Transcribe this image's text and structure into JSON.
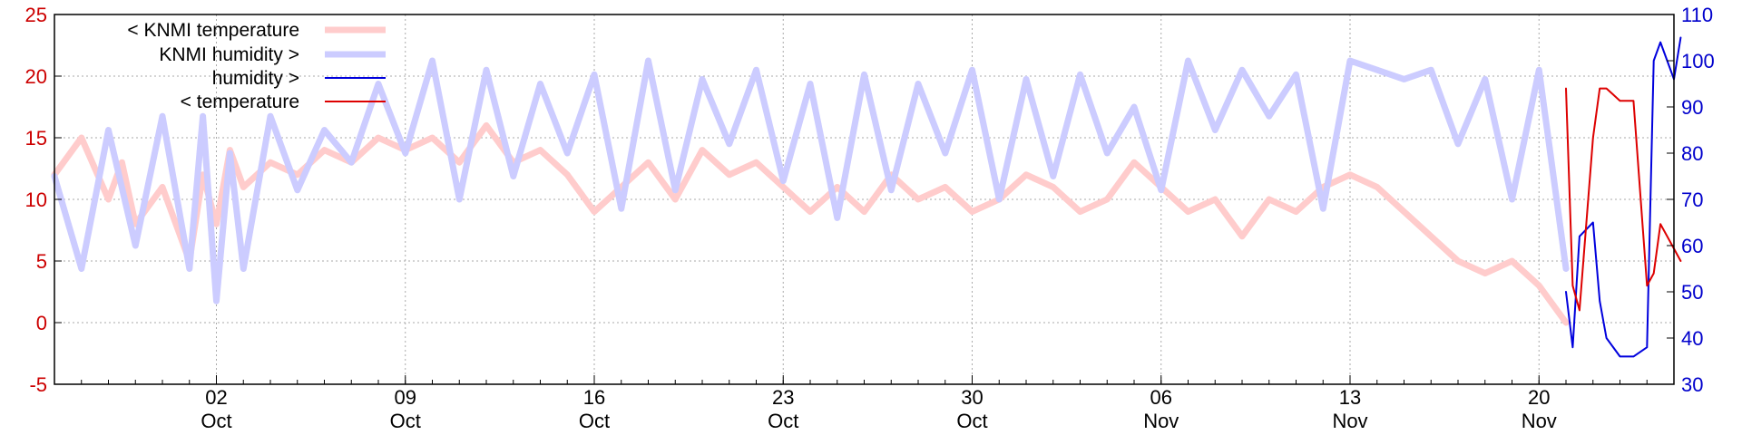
{
  "chart_data": {
    "type": "line",
    "title": "",
    "xlabel": "",
    "ylabel_left": "",
    "ylabel_right": "",
    "grid": true,
    "legend_position": "top-left",
    "x_start": "2023-09-26",
    "x_end": "2023-11-25",
    "xlim": [
      "2023-09-26",
      "2023-11-25"
    ],
    "ylim_left": [
      -5,
      25
    ],
    "ylim_right": [
      30,
      110
    ],
    "y_left_ticks": [
      "-5",
      "0",
      "5",
      "10",
      "15",
      "20",
      "25"
    ],
    "y_right_ticks": [
      "30",
      "40",
      "50",
      "60",
      "70",
      "80",
      "90",
      "100",
      "110"
    ],
    "x_ticks": [
      {
        "date": "2023-10-02",
        "day": "02",
        "month": "Oct"
      },
      {
        "date": "2023-10-09",
        "day": "09",
        "month": "Oct"
      },
      {
        "date": "2023-10-16",
        "day": "16",
        "month": "Oct"
      },
      {
        "date": "2023-10-23",
        "day": "23",
        "month": "Oct"
      },
      {
        "date": "2023-10-30",
        "day": "30",
        "month": "Oct"
      },
      {
        "date": "2023-11-06",
        "day": "06",
        "month": "Nov"
      },
      {
        "date": "2023-11-13",
        "day": "13",
        "month": "Nov"
      },
      {
        "date": "2023-11-20",
        "day": "20",
        "month": "Nov"
      }
    ],
    "colors": {
      "left_axis": "#cc0000",
      "right_axis": "#0000cc",
      "grid": "#aaaaaa",
      "knmi_temperature": "#ffcccc",
      "knmi_humidity": "#ccccff",
      "humidity": "#0000dd",
      "temperature": "#dd0000"
    },
    "series": [
      {
        "name": "< KNMI temperature",
        "axis": "left",
        "color": "#ffcccc",
        "points": [
          [
            "2023-09-26",
            12
          ],
          [
            "2023-09-27",
            15
          ],
          [
            "2023-09-28",
            10
          ],
          [
            "2023-09-28T12:00",
            13
          ],
          [
            "2023-09-29",
            8
          ],
          [
            "2023-09-30",
            11
          ],
          [
            "2023-10-01",
            5
          ],
          [
            "2023-10-01T12:00",
            12
          ],
          [
            "2023-10-02",
            8
          ],
          [
            "2023-10-02T12:00",
            14
          ],
          [
            "2023-10-03",
            11
          ],
          [
            "2023-10-04",
            13
          ],
          [
            "2023-10-05",
            12
          ],
          [
            "2023-10-06",
            14
          ],
          [
            "2023-10-07",
            13
          ],
          [
            "2023-10-08",
            15
          ],
          [
            "2023-10-09",
            14
          ],
          [
            "2023-10-10",
            15
          ],
          [
            "2023-10-11",
            13
          ],
          [
            "2023-10-12",
            16
          ],
          [
            "2023-10-13",
            13
          ],
          [
            "2023-10-14",
            14
          ],
          [
            "2023-10-15",
            12
          ],
          [
            "2023-10-16",
            9
          ],
          [
            "2023-10-17",
            11
          ],
          [
            "2023-10-18",
            13
          ],
          [
            "2023-10-19",
            10
          ],
          [
            "2023-10-20",
            14
          ],
          [
            "2023-10-21",
            12
          ],
          [
            "2023-10-22",
            13
          ],
          [
            "2023-10-23",
            11
          ],
          [
            "2023-10-24",
            9
          ],
          [
            "2023-10-25",
            11
          ],
          [
            "2023-10-26",
            9
          ],
          [
            "2023-10-27",
            12
          ],
          [
            "2023-10-28",
            10
          ],
          [
            "2023-10-29",
            11
          ],
          [
            "2023-10-30",
            9
          ],
          [
            "2023-10-31",
            10
          ],
          [
            "2023-11-01",
            12
          ],
          [
            "2023-11-02",
            11
          ],
          [
            "2023-11-03",
            9
          ],
          [
            "2023-11-04",
            10
          ],
          [
            "2023-11-05",
            13
          ],
          [
            "2023-11-06",
            11
          ],
          [
            "2023-11-07",
            9
          ],
          [
            "2023-11-08",
            10
          ],
          [
            "2023-11-09",
            7
          ],
          [
            "2023-11-10",
            10
          ],
          [
            "2023-11-11",
            9
          ],
          [
            "2023-11-12",
            11
          ],
          [
            "2023-11-13",
            12
          ],
          [
            "2023-11-14",
            11
          ],
          [
            "2023-11-15",
            9
          ],
          [
            "2023-11-16",
            7
          ],
          [
            "2023-11-17",
            5
          ],
          [
            "2023-11-18",
            4
          ],
          [
            "2023-11-19",
            5
          ],
          [
            "2023-11-20",
            3
          ],
          [
            "2023-11-21",
            0
          ]
        ]
      },
      {
        "name": "KNMI humidity >",
        "axis": "right",
        "color": "#ccccff",
        "points": [
          [
            "2023-09-26",
            75
          ],
          [
            "2023-09-27",
            55
          ],
          [
            "2023-09-28",
            85
          ],
          [
            "2023-09-29",
            60
          ],
          [
            "2023-09-30",
            88
          ],
          [
            "2023-10-01",
            55
          ],
          [
            "2023-10-01T12:00",
            88
          ],
          [
            "2023-10-02",
            48
          ],
          [
            "2023-10-02T12:00",
            80
          ],
          [
            "2023-10-03",
            55
          ],
          [
            "2023-10-04",
            88
          ],
          [
            "2023-10-05",
            72
          ],
          [
            "2023-10-06",
            85
          ],
          [
            "2023-10-07",
            78
          ],
          [
            "2023-10-08",
            95
          ],
          [
            "2023-10-09",
            80
          ],
          [
            "2023-10-10",
            100
          ],
          [
            "2023-10-11",
            70
          ],
          [
            "2023-10-12",
            98
          ],
          [
            "2023-10-13",
            75
          ],
          [
            "2023-10-14",
            95
          ],
          [
            "2023-10-15",
            80
          ],
          [
            "2023-10-16",
            97
          ],
          [
            "2023-10-17",
            68
          ],
          [
            "2023-10-18",
            100
          ],
          [
            "2023-10-19",
            72
          ],
          [
            "2023-10-20",
            96
          ],
          [
            "2023-10-21",
            82
          ],
          [
            "2023-10-22",
            98
          ],
          [
            "2023-10-23",
            74
          ],
          [
            "2023-10-24",
            95
          ],
          [
            "2023-10-25",
            66
          ],
          [
            "2023-10-26",
            97
          ],
          [
            "2023-10-27",
            72
          ],
          [
            "2023-10-28",
            95
          ],
          [
            "2023-10-29",
            80
          ],
          [
            "2023-10-30",
            98
          ],
          [
            "2023-10-31",
            70
          ],
          [
            "2023-11-01",
            96
          ],
          [
            "2023-11-02",
            75
          ],
          [
            "2023-11-03",
            97
          ],
          [
            "2023-11-04",
            80
          ],
          [
            "2023-11-05",
            90
          ],
          [
            "2023-11-06",
            72
          ],
          [
            "2023-11-07",
            100
          ],
          [
            "2023-11-08",
            85
          ],
          [
            "2023-11-09",
            98
          ],
          [
            "2023-11-10",
            88
          ],
          [
            "2023-11-11",
            97
          ],
          [
            "2023-11-12",
            68
          ],
          [
            "2023-11-13",
            100
          ],
          [
            "2023-11-14",
            98
          ],
          [
            "2023-11-15",
            96
          ],
          [
            "2023-11-16",
            98
          ],
          [
            "2023-11-17",
            82
          ],
          [
            "2023-11-18",
            96
          ],
          [
            "2023-11-19",
            70
          ],
          [
            "2023-11-20",
            98
          ],
          [
            "2023-11-21",
            55
          ]
        ]
      },
      {
        "name": "humidity >",
        "axis": "right",
        "color": "#0000dd",
        "points": [
          [
            "2023-11-21",
            50
          ],
          [
            "2023-11-21T06:00",
            38
          ],
          [
            "2023-11-21T12:00",
            62
          ],
          [
            "2023-11-22",
            65
          ],
          [
            "2023-11-22T06:00",
            48
          ],
          [
            "2023-11-22T12:00",
            40
          ],
          [
            "2023-11-23",
            36
          ],
          [
            "2023-11-23T12:00",
            36
          ],
          [
            "2023-11-24",
            38
          ],
          [
            "2023-11-24T06:00",
            100
          ],
          [
            "2023-11-24T12:00",
            104
          ],
          [
            "2023-11-25",
            96
          ],
          [
            "2023-11-25T06:00",
            105
          ]
        ]
      },
      {
        "name": "< temperature",
        "axis": "left",
        "color": "#dd0000",
        "points": [
          [
            "2023-11-21",
            19
          ],
          [
            "2023-11-21T06:00",
            3
          ],
          [
            "2023-11-21T12:00",
            1
          ],
          [
            "2023-11-22",
            15
          ],
          [
            "2023-11-22T06:00",
            19
          ],
          [
            "2023-11-22T12:00",
            19
          ],
          [
            "2023-11-23",
            18
          ],
          [
            "2023-11-23T12:00",
            18
          ],
          [
            "2023-11-24",
            3
          ],
          [
            "2023-11-24T06:00",
            4
          ],
          [
            "2023-11-24T12:00",
            8
          ],
          [
            "2023-11-25",
            6
          ],
          [
            "2023-11-25T06:00",
            5
          ]
        ]
      }
    ]
  }
}
